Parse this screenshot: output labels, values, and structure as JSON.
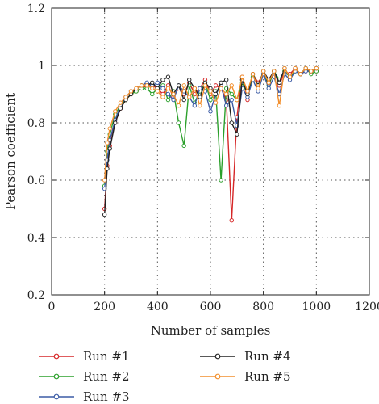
{
  "chart_data": {
    "type": "line",
    "xlabel": "Number of samples",
    "ylabel": "Pearson coefficient",
    "xlim": [
      0,
      1200
    ],
    "ylim": [
      0.2,
      1.2
    ],
    "xticks": [
      0,
      200,
      400,
      600,
      800,
      1000,
      1200
    ],
    "yticks": [
      0.2,
      0.4,
      0.6,
      0.8,
      1.0,
      1.2
    ],
    "xtick_labels": [
      "0",
      "200",
      "400",
      "600",
      "800",
      "1000",
      "1200"
    ],
    "ytick_labels": [
      "0.2",
      "0.4",
      "0.6",
      "0.8",
      "1",
      "1.2"
    ],
    "grid": "dotted",
    "legend_placement": "bottom-left",
    "series": [
      {
        "name": "Run #1",
        "color": "#d62728",
        "x": [
          200,
          210,
          220,
          240,
          260,
          280,
          300,
          320,
          340,
          360,
          380,
          400,
          420,
          440,
          460,
          480,
          500,
          520,
          540,
          560,
          580,
          600,
          620,
          640,
          660,
          680,
          700,
          720,
          740,
          760,
          780,
          800,
          820,
          840,
          860,
          880,
          900,
          920,
          940,
          960,
          980,
          1000
        ],
        "y": [
          0.5,
          0.65,
          0.72,
          0.8,
          0.85,
          0.88,
          0.9,
          0.91,
          0.92,
          0.93,
          0.93,
          0.92,
          0.9,
          0.93,
          0.89,
          0.92,
          0.9,
          0.94,
          0.9,
          0.92,
          0.95,
          0.9,
          0.93,
          0.92,
          0.88,
          0.46,
          0.82,
          0.96,
          0.88,
          0.97,
          0.94,
          0.97,
          0.95,
          0.98,
          0.93,
          0.98,
          0.97,
          0.99,
          0.97,
          0.98,
          0.98,
          0.98
        ]
      },
      {
        "name": "Run #2",
        "color": "#2ca02c",
        "x": [
          200,
          210,
          220,
          240,
          260,
          280,
          300,
          320,
          340,
          360,
          380,
          400,
          420,
          440,
          460,
          480,
          500,
          520,
          540,
          560,
          580,
          600,
          620,
          640,
          660,
          680,
          700,
          720,
          740,
          760,
          780,
          800,
          820,
          840,
          860,
          880,
          900,
          920,
          940,
          960,
          980,
          1000
        ],
        "y": [
          0.58,
          0.7,
          0.76,
          0.83,
          0.86,
          0.88,
          0.9,
          0.91,
          0.92,
          0.92,
          0.9,
          0.92,
          0.93,
          0.88,
          0.91,
          0.8,
          0.72,
          0.93,
          0.87,
          0.91,
          0.94,
          0.88,
          0.91,
          0.6,
          0.92,
          0.9,
          0.88,
          0.94,
          0.9,
          0.96,
          0.93,
          0.97,
          0.93,
          0.98,
          0.95,
          0.98,
          0.96,
          0.98,
          0.97,
          0.99,
          0.97,
          0.98
        ]
      },
      {
        "name": "Run #3",
        "color": "#3b5ba5",
        "x": [
          200,
          210,
          220,
          240,
          260,
          280,
          300,
          320,
          340,
          360,
          380,
          400,
          420,
          440,
          460,
          480,
          500,
          520,
          540,
          560,
          580,
          600,
          620,
          640,
          660,
          680,
          700,
          720,
          740,
          760,
          780,
          800,
          820,
          840,
          860,
          880,
          900,
          920,
          940,
          960,
          980,
          1000
        ],
        "y": [
          0.57,
          0.67,
          0.74,
          0.81,
          0.86,
          0.89,
          0.91,
          0.92,
          0.93,
          0.94,
          0.93,
          0.94,
          0.92,
          0.9,
          0.88,
          0.93,
          0.91,
          0.89,
          0.86,
          0.92,
          0.91,
          0.84,
          0.9,
          0.93,
          0.86,
          0.88,
          0.79,
          0.92,
          0.89,
          0.95,
          0.91,
          0.97,
          0.92,
          0.96,
          0.9,
          0.97,
          0.95,
          0.98,
          0.97,
          0.98,
          0.98,
          0.99
        ]
      },
      {
        "name": "Run #4",
        "color": "#222222",
        "x": [
          200,
          210,
          220,
          240,
          260,
          280,
          300,
          320,
          340,
          360,
          380,
          400,
          420,
          440,
          460,
          480,
          500,
          520,
          540,
          560,
          580,
          600,
          620,
          640,
          660,
          680,
          700,
          720,
          740,
          760,
          780,
          800,
          820,
          840,
          860,
          880,
          900,
          920,
          940,
          960,
          980,
          1000
        ],
        "y": [
          0.48,
          0.64,
          0.71,
          0.8,
          0.85,
          0.88,
          0.9,
          0.92,
          0.93,
          0.93,
          0.94,
          0.92,
          0.95,
          0.96,
          0.9,
          0.93,
          0.88,
          0.95,
          0.92,
          0.89,
          0.94,
          0.92,
          0.9,
          0.94,
          0.95,
          0.8,
          0.76,
          0.95,
          0.9,
          0.97,
          0.93,
          0.98,
          0.95,
          0.98,
          0.94,
          0.99,
          0.96,
          0.99,
          0.97,
          0.99,
          0.98,
          0.99
        ]
      },
      {
        "name": "Run #5",
        "color": "#f28e2b",
        "x": [
          200,
          210,
          220,
          240,
          260,
          280,
          300,
          320,
          340,
          360,
          380,
          400,
          420,
          440,
          460,
          480,
          500,
          520,
          540,
          560,
          580,
          600,
          620,
          640,
          660,
          680,
          700,
          720,
          740,
          760,
          780,
          800,
          820,
          840,
          860,
          880,
          900,
          920,
          940,
          960,
          980,
          1000
        ],
        "y": [
          0.6,
          0.73,
          0.78,
          0.84,
          0.87,
          0.89,
          0.91,
          0.92,
          0.93,
          0.93,
          0.92,
          0.91,
          0.89,
          0.92,
          0.9,
          0.86,
          0.93,
          0.89,
          0.92,
          0.86,
          0.93,
          0.91,
          0.87,
          0.92,
          0.9,
          0.93,
          0.88,
          0.96,
          0.91,
          0.97,
          0.92,
          0.98,
          0.94,
          0.98,
          0.86,
          0.99,
          0.96,
          0.99,
          0.97,
          0.99,
          0.98,
          0.99
        ]
      }
    ]
  }
}
